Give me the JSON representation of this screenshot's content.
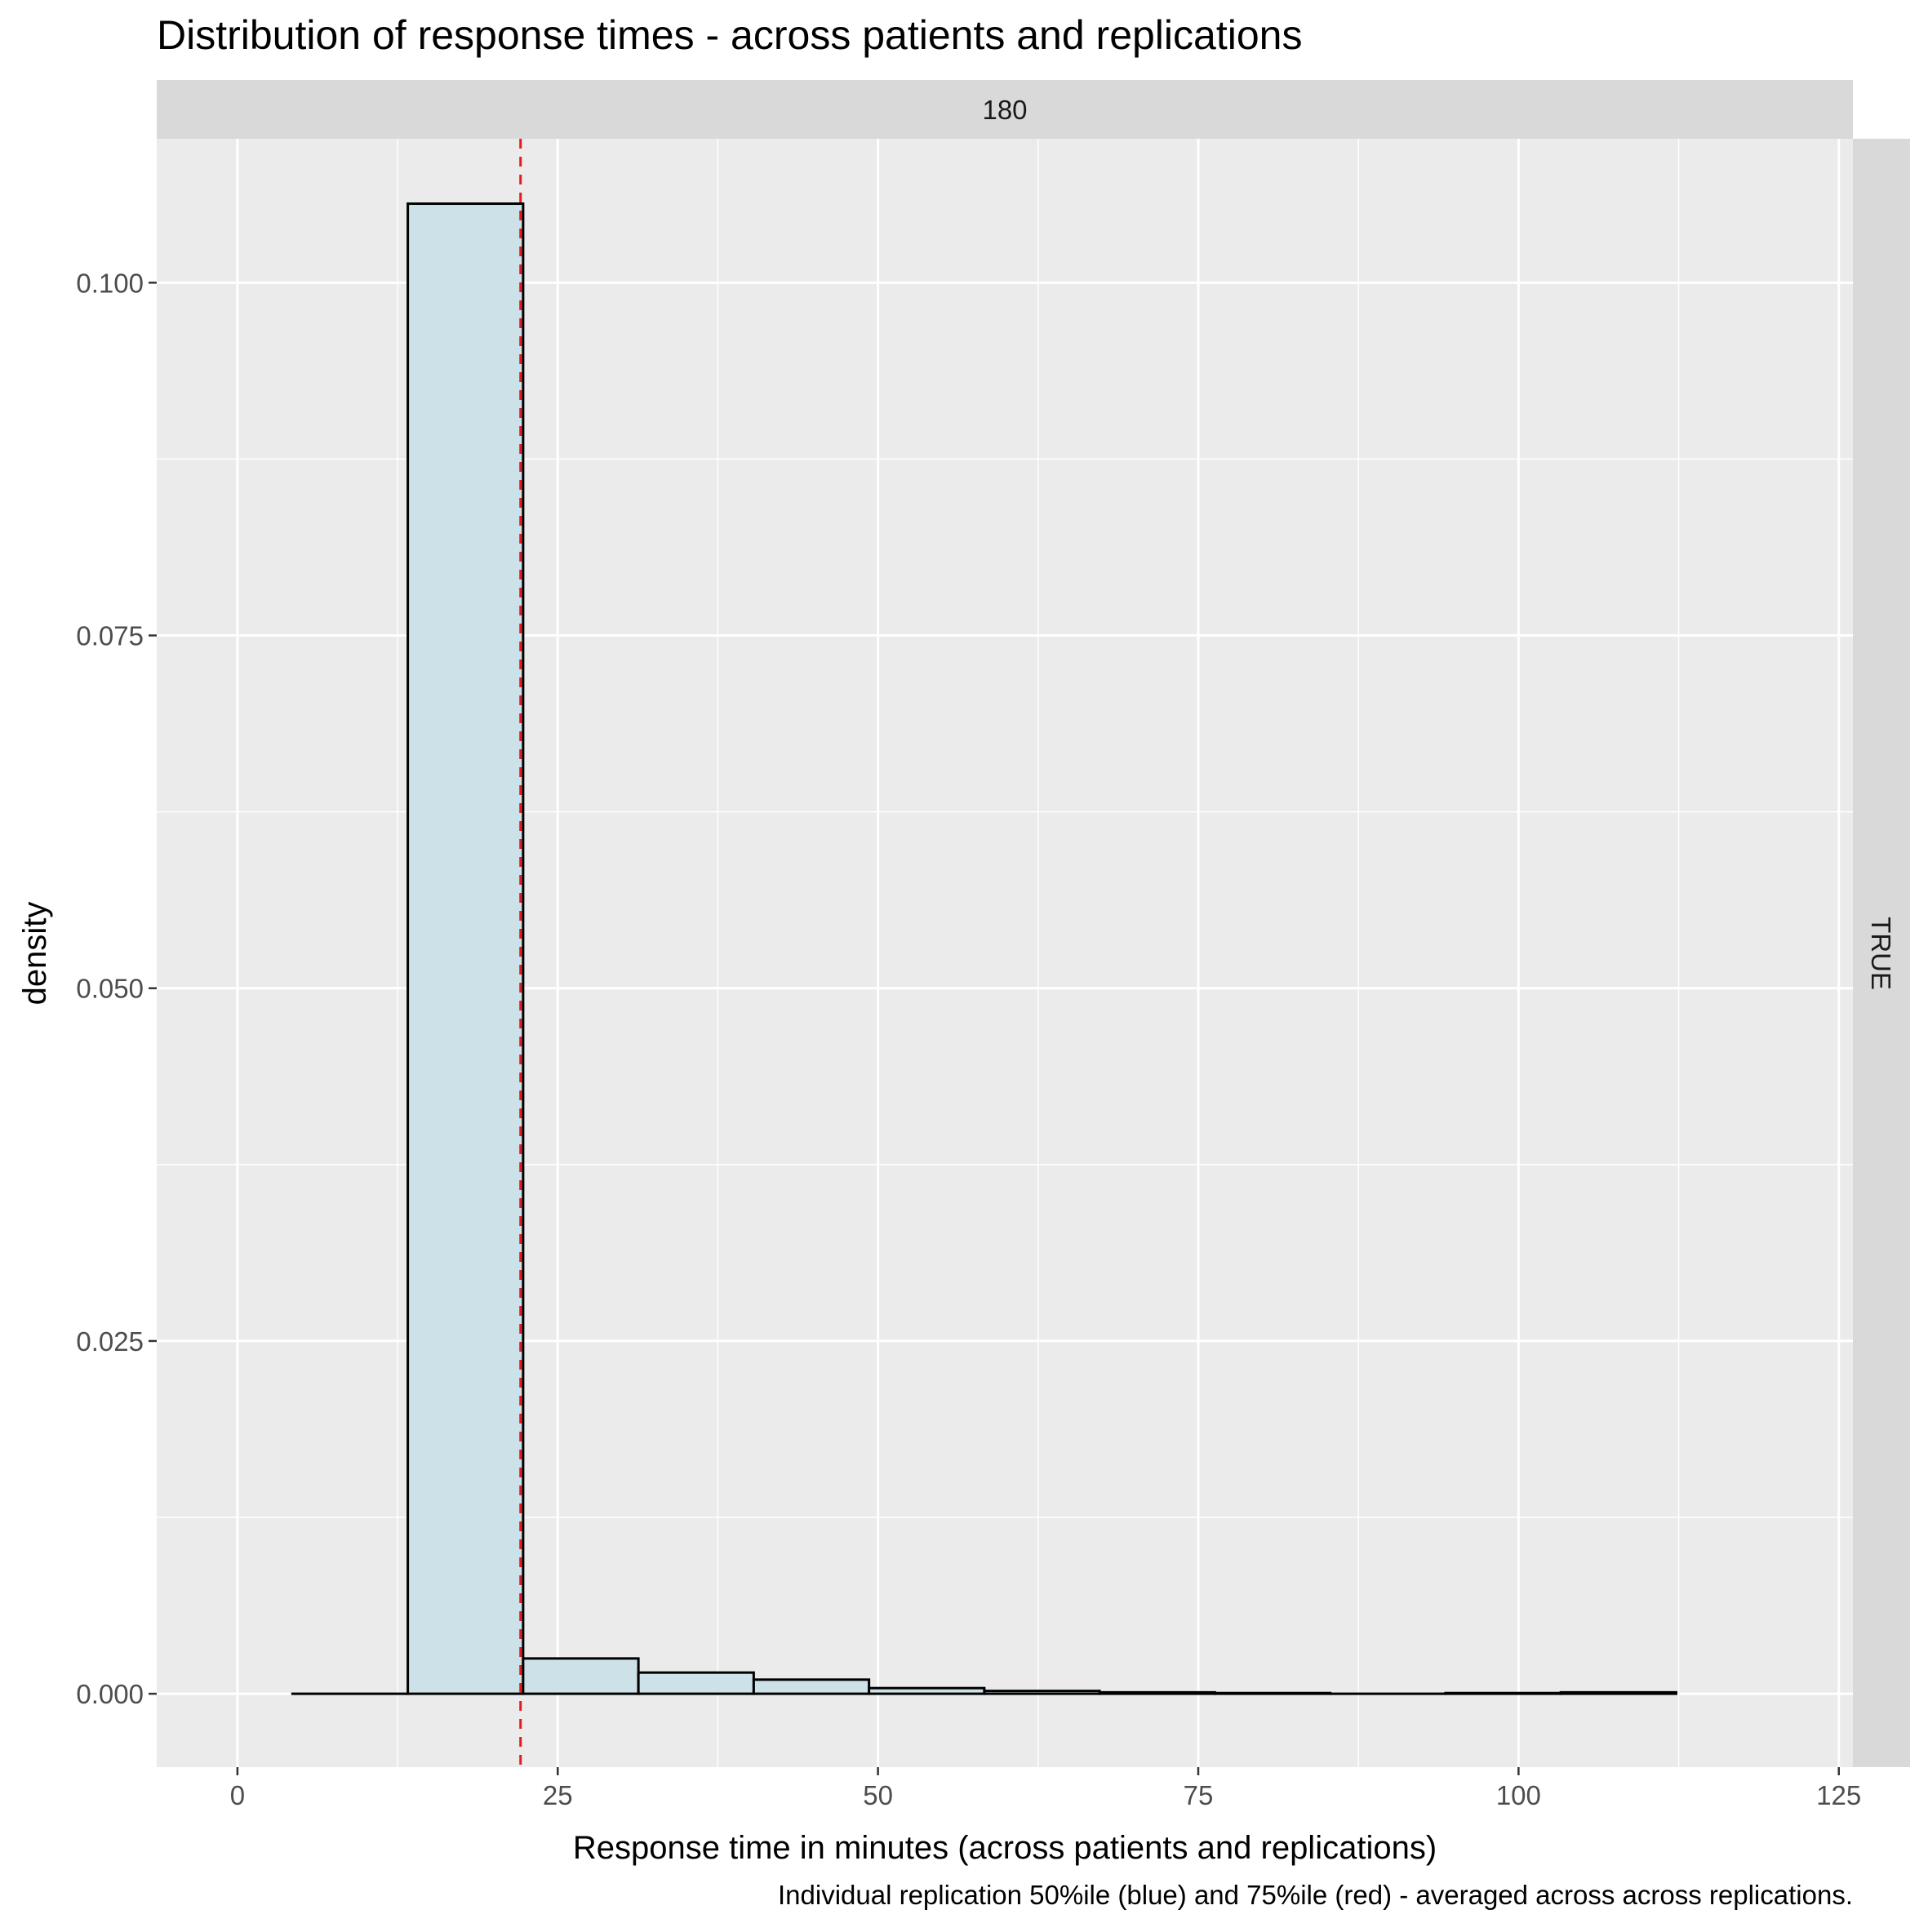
{
  "chart_data": {
    "type": "bar",
    "title": "Distribution of response times - across patients and replications",
    "xlabel": "Response time in minutes (across patients and replications)",
    "ylabel": "density",
    "caption": "Individual replication 50%ile (blue) and 75%ile (red) - averaged across across replications.",
    "facet_top_label": "180",
    "facet_right_label": "TRUE",
    "xlim": [
      -6.3,
      126.1
    ],
    "ylim": [
      -0.0052,
      0.1102
    ],
    "x_ticks": [
      0,
      25,
      50,
      75,
      100,
      125
    ],
    "x_tick_labels": [
      "0",
      "25",
      "50",
      "75",
      "100",
      "125"
    ],
    "y_ticks": [
      0.0,
      0.025,
      0.05,
      0.075,
      0.1
    ],
    "y_tick_labels": [
      "0.000",
      "0.025",
      "0.050",
      "0.075",
      "0.100"
    ],
    "bins": [
      {
        "x0": 4.3,
        "x1": 13.3,
        "density": 0.0
      },
      {
        "x0": 13.3,
        "x1": 22.3,
        "density": 0.1056
      },
      {
        "x0": 22.3,
        "x1": 31.3,
        "density": 0.0025
      },
      {
        "x0": 31.3,
        "x1": 40.3,
        "density": 0.0015
      },
      {
        "x0": 40.3,
        "x1": 49.3,
        "density": 0.001
      },
      {
        "x0": 49.3,
        "x1": 58.3,
        "density": 0.0004
      },
      {
        "x0": 58.3,
        "x1": 67.3,
        "density": 0.0002
      },
      {
        "x0": 67.3,
        "x1": 76.3,
        "density": 0.0001
      },
      {
        "x0": 76.3,
        "x1": 85.3,
        "density": 5e-05
      },
      {
        "x0": 85.3,
        "x1": 94.3,
        "density": 0.0
      },
      {
        "x0": 94.3,
        "x1": 103.3,
        "density": 5e-05
      },
      {
        "x0": 103.3,
        "x1": 112.3,
        "density": 0.0001
      }
    ],
    "vlines": [
      {
        "x": 22.1,
        "color": "#e41a1c",
        "style": "dashed"
      }
    ],
    "bar_fill": "#cde2e8",
    "bar_stroke": "#000000",
    "panel_background": "#ebebeb",
    "strip_background": "#d9d9d9",
    "grid_color": "#ffffff",
    "grid": true
  }
}
